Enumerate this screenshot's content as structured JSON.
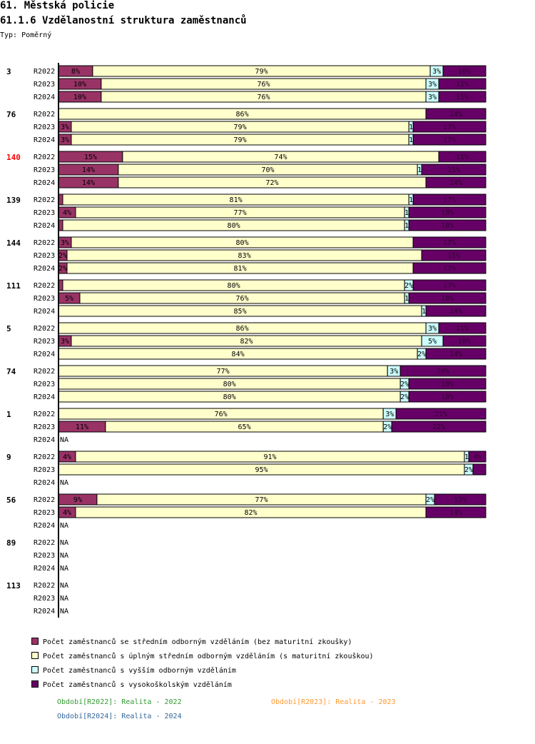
{
  "header": {
    "title": "61. Městská policie",
    "subtitle": "61.1.6 Vzdělanostní struktura zaměstnanců",
    "type": "Typ: Poměrný"
  },
  "colors": {
    "s1": "#993366",
    "s2": "#ffffcc",
    "s3": "#ccffff",
    "s4": "#660066",
    "highlight_group": "#ff0000"
  },
  "chart_data": {
    "type": "bar",
    "orientation": "horizontal-stacked-percent",
    "series_names": [
      "Počet zaměstnanců se středním odborným vzděláním (bez maturitní zkoušky)",
      "Počet zaměstnanců s úplným středním odborným vzděláním (s maturitní zkouškou)",
      "Počet zaměstnanců s vyšším odborným vzděláním",
      "Počet zaměstnanců s vysokoškolským vzděláním"
    ],
    "groups": [
      {
        "id": "3",
        "highlight": false,
        "rows": [
          {
            "period": "R2022",
            "values": [
              8,
              79,
              3,
              10
            ],
            "labels": [
              "8%",
              "79%",
              "3%",
              "10%"
            ]
          },
          {
            "period": "R2023",
            "values": [
              10,
              76,
              3,
              11
            ],
            "labels": [
              "10%",
              "76%",
              "3%",
              "11%"
            ]
          },
          {
            "period": "R2024",
            "values": [
              10,
              76,
              3,
              11
            ],
            "labels": [
              "10%",
              "76%",
              "3%",
              "11%"
            ]
          }
        ]
      },
      {
        "id": "76",
        "highlight": false,
        "rows": [
          {
            "period": "R2022",
            "values": [
              0,
              86,
              0,
              14
            ],
            "labels": [
              "",
              "86%",
              "",
              "14%"
            ]
          },
          {
            "period": "R2023",
            "values": [
              3,
              79,
              1,
              17
            ],
            "labels": [
              "3%",
              "79%",
              "1",
              "17%"
            ]
          },
          {
            "period": "R2024",
            "values": [
              3,
              79,
              1,
              17
            ],
            "labels": [
              "3%",
              "79%",
              "1",
              "17%"
            ]
          }
        ]
      },
      {
        "id": "140",
        "highlight": true,
        "rows": [
          {
            "period": "R2022",
            "values": [
              15,
              74,
              0,
              11
            ],
            "labels": [
              "15%",
              "74%",
              "",
              "11%"
            ]
          },
          {
            "period": "R2023",
            "values": [
              14,
              70,
              1,
              15
            ],
            "labels": [
              "14%",
              "70%",
              "1",
              "15%"
            ]
          },
          {
            "period": "R2024",
            "values": [
              14,
              72,
              0,
              14
            ],
            "labels": [
              "14%",
              "72%",
              "",
              "14%"
            ]
          }
        ]
      },
      {
        "id": "139",
        "highlight": false,
        "rows": [
          {
            "period": "R2022",
            "values": [
              1,
              81,
              1,
              17
            ],
            "labels": [
              "",
              "81%",
              "1",
              "17%"
            ]
          },
          {
            "period": "R2023",
            "values": [
              4,
              77,
              1,
              18
            ],
            "labels": [
              "4%",
              "77%",
              "1",
              "18%"
            ]
          },
          {
            "period": "R2024",
            "values": [
              1,
              80,
              1,
              18
            ],
            "labels": [
              "",
              "80%",
              "1",
              "18%"
            ]
          }
        ]
      },
      {
        "id": "144",
        "highlight": false,
        "rows": [
          {
            "period": "R2022",
            "values": [
              3,
              80,
              0,
              17
            ],
            "labels": [
              "3%",
              "80%",
              "",
              "17%"
            ]
          },
          {
            "period": "R2023",
            "values": [
              2,
              83,
              0,
              15
            ],
            "labels": [
              "2%",
              "83%",
              "",
              "15%"
            ]
          },
          {
            "period": "R2024",
            "values": [
              2,
              81,
              0,
              17
            ],
            "labels": [
              "2%",
              "81%",
              "",
              "17%"
            ]
          }
        ]
      },
      {
        "id": "111",
        "highlight": false,
        "rows": [
          {
            "period": "R2022",
            "values": [
              1,
              80,
              2,
              17
            ],
            "labels": [
              "",
              "80%",
              "2%",
              "17%"
            ]
          },
          {
            "period": "R2023",
            "values": [
              5,
              76,
              1,
              18
            ],
            "labels": [
              "5%",
              "76%",
              "1",
              "18%"
            ]
          },
          {
            "period": "R2024",
            "values": [
              0,
              85,
              1,
              14
            ],
            "labels": [
              "",
              "85%",
              "1",
              "14%"
            ]
          }
        ]
      },
      {
        "id": "5",
        "highlight": false,
        "rows": [
          {
            "period": "R2022",
            "values": [
              0,
              86,
              3,
              11
            ],
            "labels": [
              "",
              "86%",
              "3%",
              "11%"
            ]
          },
          {
            "period": "R2023",
            "values": [
              3,
              82,
              5,
              10
            ],
            "labels": [
              "3%",
              "82%",
              "5%",
              "10%"
            ]
          },
          {
            "period": "R2024",
            "values": [
              0,
              84,
              2,
              14
            ],
            "labels": [
              "",
              "84%",
              "2%",
              "14%"
            ]
          }
        ]
      },
      {
        "id": "74",
        "highlight": false,
        "rows": [
          {
            "period": "R2022",
            "values": [
              0,
              77,
              3,
              20
            ],
            "labels": [
              "",
              "77%",
              "3%",
              "20%"
            ]
          },
          {
            "period": "R2023",
            "values": [
              0,
              80,
              2,
              18
            ],
            "labels": [
              "",
              "80%",
              "2%",
              "18%"
            ]
          },
          {
            "period": "R2024",
            "values": [
              0,
              80,
              2,
              18
            ],
            "labels": [
              "",
              "80%",
              "2%",
              "18%"
            ]
          }
        ]
      },
      {
        "id": "1",
        "highlight": false,
        "rows": [
          {
            "period": "R2022",
            "values": [
              0,
              76,
              3,
              21
            ],
            "labels": [
              "",
              "76%",
              "3%",
              "21%"
            ]
          },
          {
            "period": "R2023",
            "values": [
              11,
              65,
              2,
              22
            ],
            "labels": [
              "11%",
              "65%",
              "2%",
              "22%"
            ]
          },
          {
            "period": "R2024",
            "na": "NA"
          }
        ]
      },
      {
        "id": "9",
        "highlight": false,
        "rows": [
          {
            "period": "R2022",
            "values": [
              4,
              91,
              1,
              4
            ],
            "labels": [
              "4%",
              "91%",
              "1",
              "4%"
            ]
          },
          {
            "period": "R2023",
            "values": [
              0,
              95,
              2,
              3
            ],
            "labels": [
              "",
              "95%",
              "2%",
              ""
            ]
          },
          {
            "period": "R2024",
            "na": "NA"
          }
        ]
      },
      {
        "id": "56",
        "highlight": false,
        "rows": [
          {
            "period": "R2022",
            "values": [
              9,
              77,
              2,
              12
            ],
            "labels": [
              "9%",
              "77%",
              "2%",
              "12%"
            ]
          },
          {
            "period": "R2023",
            "values": [
              4,
              82,
              0,
              14
            ],
            "labels": [
              "4%",
              "82%",
              "",
              "14%"
            ]
          },
          {
            "period": "R2024",
            "na": "NA"
          }
        ]
      },
      {
        "id": "89",
        "highlight": false,
        "rows": [
          {
            "period": "R2022",
            "na": "NA"
          },
          {
            "period": "R2023",
            "na": "NA"
          },
          {
            "period": "R2024",
            "na": "NA"
          }
        ]
      },
      {
        "id": "113",
        "highlight": false,
        "rows": [
          {
            "period": "R2022",
            "na": "NA"
          },
          {
            "period": "R2023",
            "na": "NA"
          },
          {
            "period": "R2024",
            "na": "NA"
          }
        ]
      }
    ],
    "xlim": [
      0,
      100
    ]
  },
  "legend": {
    "items": [
      "Počet zaměstnanců se středním odborným vzděláním (bez maturitní zkoušky)",
      "Počet zaměstnanců s úplným středním odborným vzděláním (s maturitní zkouškou)",
      "Počet zaměstnanců s vyšším odborným vzděláním",
      "Počet zaměstnanců s vysokoškolským vzděláním"
    ]
  },
  "periods": {
    "r2022": {
      "text": "Období[R2022]: Realita - 2022",
      "color": "#339933"
    },
    "r2023": {
      "text": "Období[R2023]: Realita - 2023",
      "color": "#ff9933"
    },
    "r2024": {
      "text": "Období[R2024]: Realita - 2024",
      "color": "#336699"
    }
  }
}
